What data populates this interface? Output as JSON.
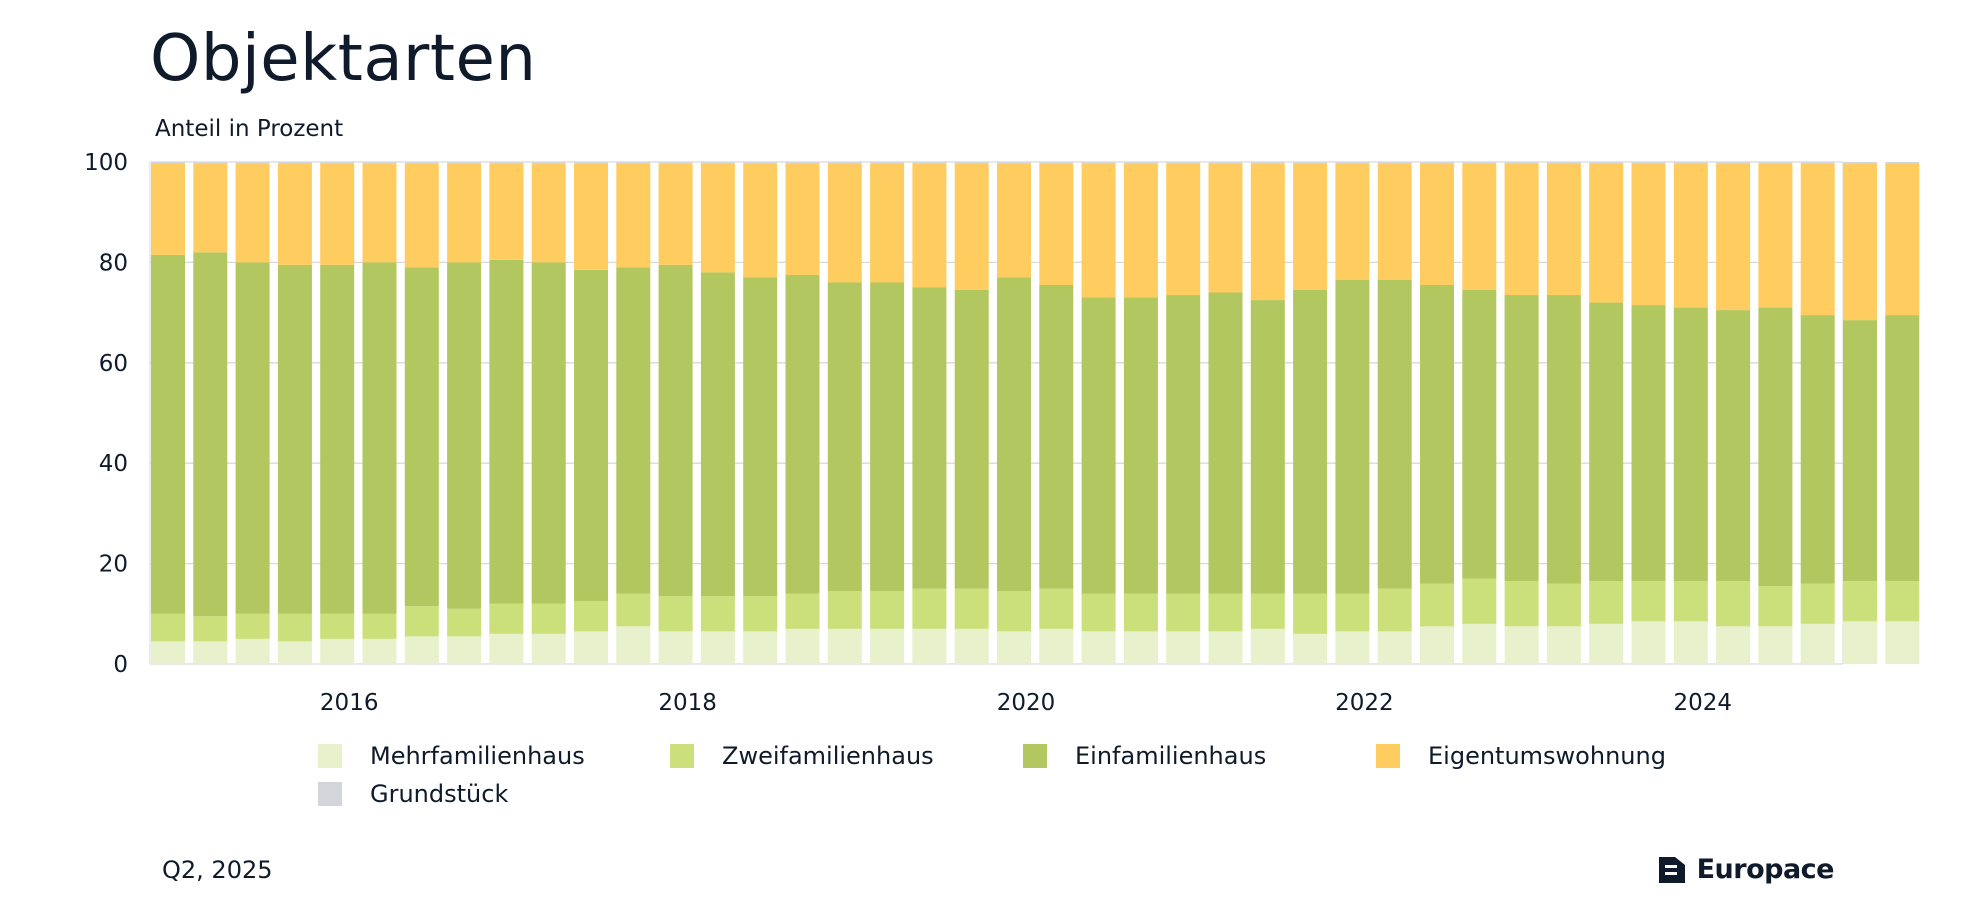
{
  "title": "Objektarten",
  "y_unit_label": "Anteil in Prozent",
  "footer": {
    "date": "Q2, 2025",
    "brand": "Europace"
  },
  "colors": {
    "Mehrfamilienhaus": "#e8f1cc",
    "Zweifamilienhaus": "#cbe07a",
    "Einfamilienhaus": "#b2c75f",
    "Eigentumswohnung": "#ffcd5f",
    "Grundstück": "#d4d4db",
    "grid": "#d9d9d9"
  },
  "chart_data": {
    "type": "bar",
    "stacked": true,
    "ylim": [
      0,
      100
    ],
    "yticks": [
      0,
      20,
      40,
      60,
      80,
      100
    ],
    "x_tick_labels": [
      "2016",
      "2018",
      "2020",
      "2022",
      "2024"
    ],
    "categories": [
      "Q1 2015",
      "Q2 2015",
      "Q3 2015",
      "Q4 2015",
      "Q1 2016",
      "Q2 2016",
      "Q3 2016",
      "Q4 2016",
      "Q1 2017",
      "Q2 2017",
      "Q3 2017",
      "Q4 2017",
      "Q1 2018",
      "Q2 2018",
      "Q3 2018",
      "Q4 2018",
      "Q1 2019",
      "Q2 2019",
      "Q3 2019",
      "Q4 2019",
      "Q1 2020",
      "Q2 2020",
      "Q3 2020",
      "Q4 2020",
      "Q1 2021",
      "Q2 2021",
      "Q3 2021",
      "Q4 2021",
      "Q1 2022",
      "Q2 2022",
      "Q3 2022",
      "Q4 2022",
      "Q1 2023",
      "Q2 2023",
      "Q3 2023",
      "Q4 2023",
      "Q1 2024",
      "Q2 2024",
      "Q3 2024",
      "Q4 2024",
      "Q1 2025",
      "Q2 2025"
    ],
    "series": [
      {
        "name": "Mehrfamilienhaus",
        "values": [
          4.5,
          4.5,
          5,
          4.5,
          5,
          5,
          5.5,
          5.5,
          6,
          6,
          6.5,
          7.5,
          6.5,
          6.5,
          6.5,
          7,
          7,
          7,
          7,
          7,
          6.5,
          7,
          6.5,
          6.5,
          6.5,
          6.5,
          7,
          6,
          6.5,
          6.5,
          7.5,
          8,
          7.5,
          7.5,
          8,
          8.5,
          8.5,
          7.5,
          7.5,
          8,
          8.5,
          8.5
        ]
      },
      {
        "name": "Zweifamilienhaus",
        "values": [
          5.5,
          5,
          5,
          5.5,
          5,
          5,
          6,
          5.5,
          6,
          6,
          6,
          6.5,
          7,
          7,
          7,
          7,
          7.5,
          7.5,
          8,
          8,
          8,
          8,
          7.5,
          7.5,
          7.5,
          7.5,
          7,
          8,
          7.5,
          8.5,
          8.5,
          9,
          9,
          8.5,
          8.5,
          8,
          8,
          9,
          8,
          8,
          8,
          8
        ]
      },
      {
        "name": "Einfamilienhaus",
        "values": [
          71.5,
          72.5,
          70,
          69.5,
          69.5,
          70,
          67.5,
          69,
          68.5,
          68,
          66,
          65,
          66,
          64.5,
          63.5,
          63.5,
          61.5,
          61.5,
          60,
          59.5,
          62.5,
          60.5,
          59,
          59,
          59.5,
          60,
          58.5,
          60.5,
          62.5,
          61.5,
          59.5,
          57.5,
          57,
          57.5,
          55.5,
          55,
          54.5,
          54,
          55.5,
          53.5,
          52,
          53
        ]
      },
      {
        "name": "Eigentumswohnung",
        "values": [
          18.2,
          17.6,
          19.6,
          20.2,
          20.1,
          19.6,
          20.6,
          19.6,
          19.1,
          19.6,
          21.1,
          20.6,
          20.1,
          21.6,
          22.6,
          22.1,
          23.6,
          23.6,
          24.6,
          25.1,
          22.6,
          24.1,
          26.6,
          26.6,
          26.1,
          25.6,
          27.1,
          25.1,
          23.1,
          23.1,
          24.1,
          25.1,
          26.1,
          26.1,
          27.6,
          28.1,
          28.6,
          29.1,
          28.6,
          30.1,
          31.1,
          30.2
        ]
      },
      {
        "name": "Grundstück",
        "values": [
          0.3,
          0.4,
          0.4,
          0.3,
          0.4,
          0.4,
          0.4,
          0.4,
          0.4,
          0.4,
          0.4,
          0.4,
          0.4,
          0.4,
          0.4,
          0.4,
          0.4,
          0.4,
          0.4,
          0.4,
          0.4,
          0.4,
          0.4,
          0.4,
          0.4,
          0.4,
          0.4,
          0.4,
          0.4,
          0.4,
          0.4,
          0.4,
          0.4,
          0.4,
          0.4,
          0.4,
          0.4,
          0.4,
          0.4,
          0.4,
          0.4,
          0.3
        ]
      }
    ]
  }
}
